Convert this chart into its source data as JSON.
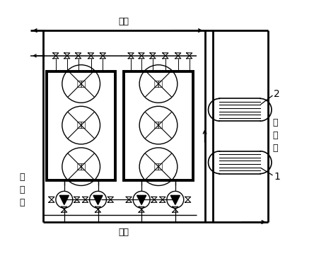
{
  "bg_color": "#ffffff",
  "labels": {
    "chushui": "出水",
    "jinshui": "进水",
    "penlinbeng": "喷\n淤\n泵",
    "tianranqi": "天\n然\n气",
    "num1": "1",
    "num2": "2",
    "fengji": "风机"
  },
  "font_size": 9
}
